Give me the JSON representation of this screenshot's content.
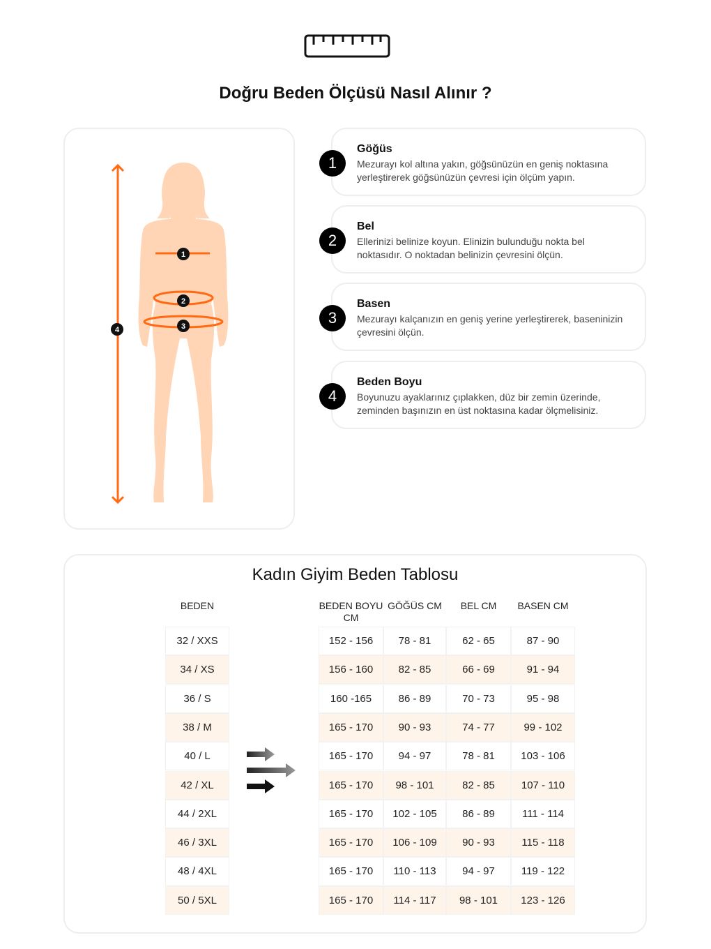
{
  "header": {
    "icon": "ruler-icon",
    "title": "Doğru Beden Ölçüsü Nasıl Alınır ?"
  },
  "colors": {
    "accent": "#ff6a13",
    "skin": "#ffd5b5",
    "row_alt": "#fff4ea"
  },
  "figure": {
    "markers": [
      "1",
      "2",
      "3",
      "4"
    ]
  },
  "steps": [
    {
      "num": "1",
      "title": "Göğüs",
      "text": "Mezurayı kol altına yakın, göğsünüzün en geniş noktasına yerleştirerek göğsünüzün çevresi için ölçüm yapın."
    },
    {
      "num": "2",
      "title": "Bel",
      "text": "Ellerinizi belinize koyun. Elinizin bulunduğu nokta bel noktasıdır. O noktadan belinizin çevresini ölçün."
    },
    {
      "num": "3",
      "title": "Basen",
      "text": "Mezurayı kalçanızın en geniş yerine yerleştirerek, baseninizin çevresini ölçün."
    },
    {
      "num": "4",
      "title": "Beden Boyu",
      "text": "Boyunuzu ayaklarınız çıplakken, düz bir zemin üzerinde, zeminden başınızın en üst noktasına kadar ölçmelisiniz."
    }
  ],
  "table": {
    "title": "Kadın Giyim Beden Tablosu",
    "headers": [
      "BEDEN",
      "BEDEN BOYU CM",
      "GÖĞÜS CM",
      "BEL CM",
      "BASEN CM"
    ],
    "rows": [
      [
        "32 / XXS",
        "152 - 156",
        "78 - 81",
        "62 - 65",
        "87 - 90"
      ],
      [
        "34 / XS",
        "156 - 160",
        "82 - 85",
        "66 - 69",
        "91 - 94"
      ],
      [
        "36 / S",
        "160 -165",
        "86 - 89",
        "70 - 73",
        "95 - 98"
      ],
      [
        "38 / M",
        "165 - 170",
        "90 - 93",
        "74 - 77",
        "99 - 102"
      ],
      [
        "40 / L",
        "165 - 170",
        "94 - 97",
        "78 - 81",
        "103 - 106"
      ],
      [
        "42 / XL",
        "165 - 170",
        "98 - 101",
        "82 - 85",
        "107 - 110"
      ],
      [
        "44 / 2XL",
        "165 - 170",
        "102 - 105",
        "86 - 89",
        "111 - 114"
      ],
      [
        "46 / 3XL",
        "165 - 170",
        "106 - 109",
        "90 - 93",
        "115 - 118"
      ],
      [
        "48 / 4XL",
        "165 - 170",
        "110 - 113",
        "94 - 97",
        "119 - 122"
      ],
      [
        "50 / 5XL",
        "165 - 170",
        "114 - 117",
        "98 - 101",
        "123 - 126"
      ]
    ]
  }
}
